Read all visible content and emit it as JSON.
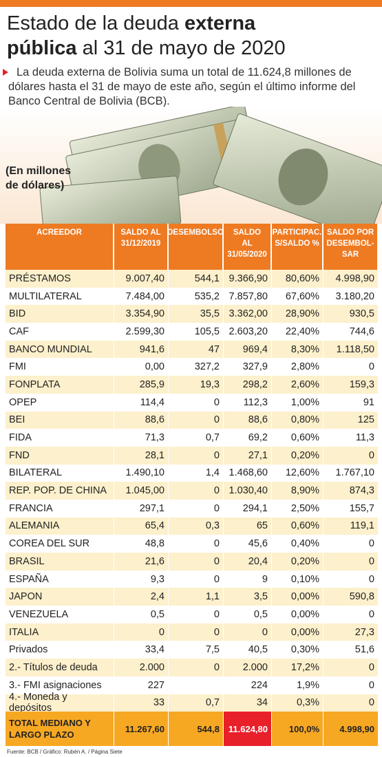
{
  "header": {
    "title": [
      "Estado de la deuda",
      "externa",
      "pública",
      "al 31 de mayo de 2020"
    ],
    "summary": "La deuda externa de Bolivia suma un total de 11.624,8 millones de dólares hasta el 31 de mayo de este año, según el último informe del Banco Central de Bolivia (BCB).",
    "unit": "(En millones de dólares)"
  },
  "table": {
    "columns": [
      "ACREEDOR",
      "SALDO AL 31/12/2019",
      "DESEMBOLSO",
      "SALDO AL 31/05/2020",
      "PARTICIPAC. S/SALDO %",
      "SALDO POR DESEMBOL-SAR"
    ],
    "rows": [
      [
        "PRÉSTAMOS",
        "9.007,40",
        "544,1",
        "9.366,90",
        "80,60%",
        "4.998,90"
      ],
      [
        "MULTILATERAL",
        "7.484,00",
        "535,2",
        "7.857,80",
        "67,60%",
        "3.180,20"
      ],
      [
        "BID",
        "3.354,90",
        "35,5",
        "3.362,00",
        "28,90%",
        "930,5"
      ],
      [
        "CAF",
        "2.599,30",
        "105,5",
        "2.603,20",
        "22,40%",
        "744,6"
      ],
      [
        "BANCO MUNDIAL",
        "941,6",
        "47",
        "969,4",
        "8,30%",
        "1.118,50"
      ],
      [
        "FMI",
        "0,00",
        "327,2",
        "327,9",
        "2,80%",
        "0"
      ],
      [
        "FONPLATA",
        "285,9",
        "19,3",
        "298,2",
        "2,60%",
        "159,3"
      ],
      [
        "OPEP",
        "114,4",
        "0",
        "112,3",
        "1,00%",
        "91"
      ],
      [
        "BEI",
        "88,6",
        "0",
        "88,6",
        "0,80%",
        "125"
      ],
      [
        "FIDA",
        "71,3",
        "0,7",
        "69,2",
        "0,60%",
        "11,3"
      ],
      [
        "FND",
        "28,1",
        "0",
        "27,1",
        "0,20%",
        "0"
      ],
      [
        "BILATERAL",
        "1.490,10",
        "1,4",
        "1.468,60",
        "12,60%",
        "1.767,10"
      ],
      [
        "REP. POP. DE CHINA",
        "1.045,00",
        "0",
        "1.030,40",
        "8,90%",
        "874,3"
      ],
      [
        "FRANCIA",
        "297,1",
        "0",
        "294,1",
        "2,50%",
        "155,7"
      ],
      [
        "ALEMANIA",
        "65,4",
        "0,3",
        "65",
        "0,60%",
        "119,1"
      ],
      [
        "COREA DEL SUR",
        "48,8",
        "0",
        "45,6",
        "0,40%",
        "0"
      ],
      [
        "BRASIL",
        "21,6",
        "0",
        "20,4",
        "0,20%",
        "0"
      ],
      [
        "ESPAÑA",
        "9,3",
        "0",
        "9",
        "0,10%",
        "0"
      ],
      [
        "JAPON",
        "2,4",
        "1,1",
        "3,5",
        "0,00%",
        "590,8"
      ],
      [
        "VENEZUELA",
        "0,5",
        "0",
        "0,5",
        "0,00%",
        "0"
      ],
      [
        "ITALIA",
        "0",
        "0",
        "0",
        "0,00%",
        "27,3"
      ],
      [
        "Privados",
        "33,4",
        "7,5",
        "40,5",
        "0,30%",
        "51,6"
      ],
      [
        "2.- Títulos de deuda",
        "2.000",
        "0",
        "2.000",
        "17,2%",
        "0"
      ],
      [
        "3.- FMI asignaciones",
        "227",
        "",
        "224",
        "1,9%",
        "0"
      ],
      [
        "4.- Moneda y depósitos",
        "33",
        "0,7",
        "34",
        "0,3%",
        "0"
      ]
    ],
    "total": [
      "TOTAL MEDIANO Y LARGO PLAZO",
      "11.267,60",
      "544,8",
      "11.624,80",
      "100,0%",
      "4.998,90"
    ]
  },
  "footer": {
    "source": "Fuente: BCB / Gráfico: Rubén A. / Página Siete"
  }
}
